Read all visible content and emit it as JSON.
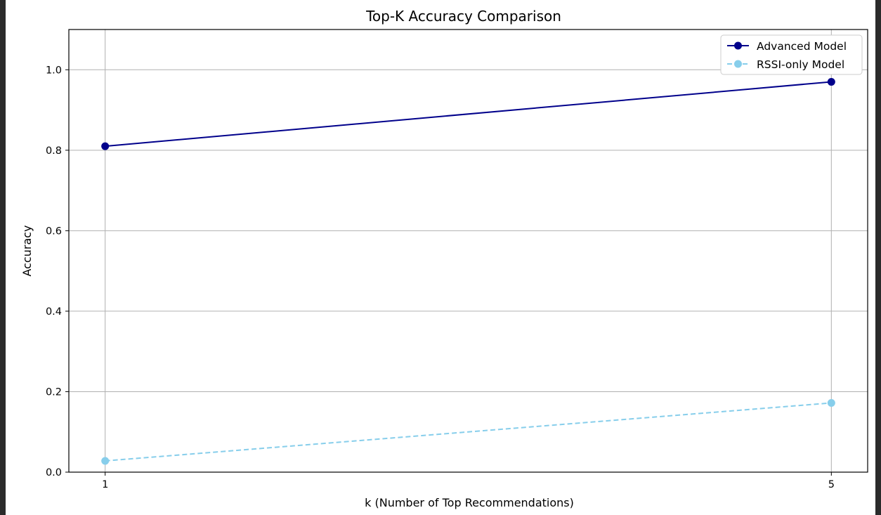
{
  "chart_data": {
    "type": "line",
    "title": "Top-K Accuracy Comparison",
    "xlabel": "k (Number of Top Recommendations)",
    "ylabel": "Accuracy",
    "x": [
      1,
      5
    ],
    "xticks": [
      "1",
      "5"
    ],
    "ylim": [
      0,
      1.1
    ],
    "yticks": [
      "0.0",
      "0.2",
      "0.4",
      "0.6",
      "0.8",
      "1.0"
    ],
    "grid": true,
    "legend_position": "top-right",
    "series": [
      {
        "name": "Advanced Model",
        "values": [
          0.81,
          0.97
        ],
        "color": "#00008b",
        "linestyle": "solid",
        "marker": "circle"
      },
      {
        "name": "RSSI-only Model",
        "values": [
          0.028,
          0.172
        ],
        "color": "#87ceeb",
        "linestyle": "dashed",
        "marker": "circle"
      }
    ]
  }
}
